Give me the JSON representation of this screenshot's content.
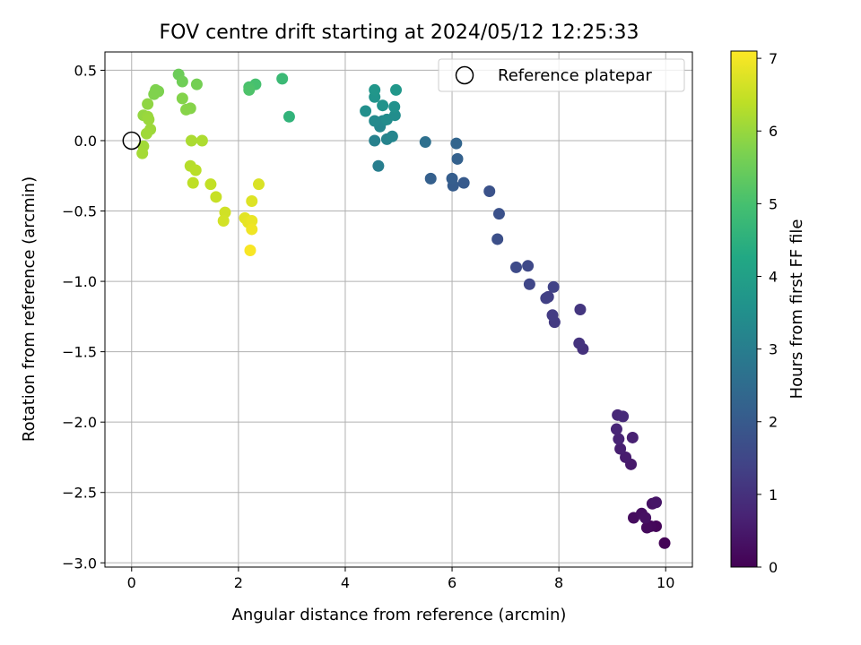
{
  "chart_data": {
    "type": "scatter",
    "title": "FOV centre drift starting at 2024/05/12 12:25:33",
    "xlabel": "Angular distance from reference (arcmin)",
    "ylabel": "Rotation from reference (arcmin)",
    "xlim": [
      -0.5,
      10.5
    ],
    "ylim": [
      -3.03,
      0.63
    ],
    "x_ticks": [
      0,
      2,
      4,
      6,
      8,
      10
    ],
    "x_tick_labels": [
      "0",
      "2",
      "4",
      "6",
      "8",
      "10"
    ],
    "y_ticks": [
      0.5,
      0.0,
      -0.5,
      -1.0,
      -1.5,
      -2.0,
      -2.5,
      -3.0
    ],
    "y_tick_labels": [
      "0.5",
      "0.0",
      "−0.5",
      "−1.0",
      "−1.5",
      "−2.0",
      "−2.5",
      "−3.0"
    ],
    "grid": true,
    "colormap": "viridis",
    "colorbar": {
      "label": "Hours from first FF file",
      "range": [
        0,
        7.1
      ],
      "ticks": [
        0,
        1,
        2,
        3,
        4,
        5,
        6,
        7
      ],
      "tick_labels": [
        "0",
        "1",
        "2",
        "3",
        "4",
        "5",
        "6",
        "7"
      ]
    },
    "legend": {
      "position": "top-right",
      "entries": [
        "Reference platepar"
      ]
    },
    "reference_point": {
      "x": 0,
      "y": 0,
      "label": "Reference platepar"
    },
    "points": [
      {
        "x": 9.98,
        "y": -2.86,
        "c": 0.05
      },
      {
        "x": 9.82,
        "y": -2.74,
        "c": 0.1
      },
      {
        "x": 9.72,
        "y": -2.74,
        "c": 0.15
      },
      {
        "x": 9.65,
        "y": -2.75,
        "c": 0.18
      },
      {
        "x": 9.4,
        "y": -2.68,
        "c": 0.22
      },
      {
        "x": 9.55,
        "y": -2.65,
        "c": 0.26
      },
      {
        "x": 9.62,
        "y": -2.68,
        "c": 0.3
      },
      {
        "x": 9.75,
        "y": -2.58,
        "c": 0.35
      },
      {
        "x": 9.82,
        "y": -2.57,
        "c": 0.4
      },
      {
        "x": 9.35,
        "y": -2.3,
        "c": 0.5
      },
      {
        "x": 9.25,
        "y": -2.25,
        "c": 0.55
      },
      {
        "x": 9.15,
        "y": -2.19,
        "c": 0.6
      },
      {
        "x": 9.38,
        "y": -2.11,
        "c": 0.65
      },
      {
        "x": 9.12,
        "y": -2.12,
        "c": 0.7
      },
      {
        "x": 9.08,
        "y": -2.05,
        "c": 0.75
      },
      {
        "x": 9.1,
        "y": -1.95,
        "c": 0.8
      },
      {
        "x": 9.2,
        "y": -1.96,
        "c": 0.85
      },
      {
        "x": 8.45,
        "y": -1.48,
        "c": 1.0
      },
      {
        "x": 8.38,
        "y": -1.44,
        "c": 1.05
      },
      {
        "x": 8.4,
        "y": -1.2,
        "c": 1.1
      },
      {
        "x": 7.92,
        "y": -1.29,
        "c": 1.2
      },
      {
        "x": 7.88,
        "y": -1.24,
        "c": 1.25
      },
      {
        "x": 7.8,
        "y": -1.11,
        "c": 1.3
      },
      {
        "x": 7.76,
        "y": -1.12,
        "c": 1.35
      },
      {
        "x": 7.9,
        "y": -1.04,
        "c": 1.4
      },
      {
        "x": 7.45,
        "y": -1.02,
        "c": 1.5
      },
      {
        "x": 7.42,
        "y": -0.89,
        "c": 1.55
      },
      {
        "x": 7.2,
        "y": -0.9,
        "c": 1.6
      },
      {
        "x": 6.85,
        "y": -0.7,
        "c": 1.7
      },
      {
        "x": 6.88,
        "y": -0.52,
        "c": 1.75
      },
      {
        "x": 6.7,
        "y": -0.36,
        "c": 1.8
      },
      {
        "x": 6.22,
        "y": -0.3,
        "c": 2.0
      },
      {
        "x": 6.02,
        "y": -0.32,
        "c": 2.05
      },
      {
        "x": 6.0,
        "y": -0.27,
        "c": 2.1
      },
      {
        "x": 5.6,
        "y": -0.27,
        "c": 2.15
      },
      {
        "x": 6.1,
        "y": -0.13,
        "c": 2.2
      },
      {
        "x": 6.08,
        "y": -0.02,
        "c": 2.3
      },
      {
        "x": 5.5,
        "y": -0.01,
        "c": 2.6
      },
      {
        "x": 4.62,
        "y": -0.18,
        "c": 3.0
      },
      {
        "x": 4.55,
        "y": 0.0,
        "c": 3.1
      },
      {
        "x": 4.78,
        "y": 0.01,
        "c": 3.15
      },
      {
        "x": 4.88,
        "y": 0.03,
        "c": 3.2
      },
      {
        "x": 4.65,
        "y": 0.1,
        "c": 3.25
      },
      {
        "x": 4.7,
        "y": 0.14,
        "c": 3.3
      },
      {
        "x": 4.55,
        "y": 0.14,
        "c": 3.35
      },
      {
        "x": 4.78,
        "y": 0.15,
        "c": 3.4
      },
      {
        "x": 4.93,
        "y": 0.18,
        "c": 3.45
      },
      {
        "x": 4.38,
        "y": 0.21,
        "c": 3.5
      },
      {
        "x": 4.92,
        "y": 0.24,
        "c": 3.55
      },
      {
        "x": 4.7,
        "y": 0.25,
        "c": 3.6
      },
      {
        "x": 4.55,
        "y": 0.31,
        "c": 3.65
      },
      {
        "x": 4.55,
        "y": 0.36,
        "c": 3.7
      },
      {
        "x": 4.95,
        "y": 0.36,
        "c": 3.75
      },
      {
        "x": 2.95,
        "y": 0.17,
        "c": 4.6
      },
      {
        "x": 2.82,
        "y": 0.44,
        "c": 4.8
      },
      {
        "x": 2.32,
        "y": 0.4,
        "c": 5.0
      },
      {
        "x": 2.2,
        "y": 0.38,
        "c": 5.05
      },
      {
        "x": 2.2,
        "y": 0.36,
        "c": 5.1
      },
      {
        "x": 0.88,
        "y": 0.47,
        "c": 5.5
      },
      {
        "x": 0.95,
        "y": 0.42,
        "c": 5.55
      },
      {
        "x": 1.22,
        "y": 0.4,
        "c": 5.6
      },
      {
        "x": 0.5,
        "y": 0.35,
        "c": 5.7
      },
      {
        "x": 0.45,
        "y": 0.36,
        "c": 5.72
      },
      {
        "x": 0.42,
        "y": 0.33,
        "c": 5.74
      },
      {
        "x": 0.95,
        "y": 0.3,
        "c": 5.78
      },
      {
        "x": 1.1,
        "y": 0.23,
        "c": 5.8
      },
      {
        "x": 1.02,
        "y": 0.22,
        "c": 5.82
      },
      {
        "x": 0.3,
        "y": 0.26,
        "c": 5.9
      },
      {
        "x": 0.22,
        "y": 0.18,
        "c": 5.95
      },
      {
        "x": 0.3,
        "y": 0.17,
        "c": 6.0
      },
      {
        "x": 0.32,
        "y": 0.15,
        "c": 6.02
      },
      {
        "x": 0.35,
        "y": 0.08,
        "c": 6.05
      },
      {
        "x": 0.28,
        "y": 0.05,
        "c": 6.08
      },
      {
        "x": 0.22,
        "y": -0.04,
        "c": 6.1
      },
      {
        "x": 0.2,
        "y": -0.09,
        "c": 6.12
      },
      {
        "x": 1.12,
        "y": 0.0,
        "c": 6.2
      },
      {
        "x": 1.32,
        "y": 0.0,
        "c": 6.22
      },
      {
        "x": 1.1,
        "y": -0.18,
        "c": 6.3
      },
      {
        "x": 1.2,
        "y": -0.21,
        "c": 6.35
      },
      {
        "x": 1.15,
        "y": -0.3,
        "c": 6.4
      },
      {
        "x": 1.48,
        "y": -0.31,
        "c": 6.45
      },
      {
        "x": 1.58,
        "y": -0.4,
        "c": 6.5
      },
      {
        "x": 1.75,
        "y": -0.51,
        "c": 6.6
      },
      {
        "x": 1.72,
        "y": -0.57,
        "c": 6.62
      },
      {
        "x": 2.38,
        "y": -0.31,
        "c": 6.7
      },
      {
        "x": 2.25,
        "y": -0.43,
        "c": 6.75
      },
      {
        "x": 2.12,
        "y": -0.55,
        "c": 6.8
      },
      {
        "x": 2.18,
        "y": -0.58,
        "c": 6.85
      },
      {
        "x": 2.25,
        "y": -0.57,
        "c": 6.88
      },
      {
        "x": 2.25,
        "y": -0.63,
        "c": 6.95
      },
      {
        "x": 2.22,
        "y": -0.78,
        "c": 7.05
      }
    ]
  }
}
